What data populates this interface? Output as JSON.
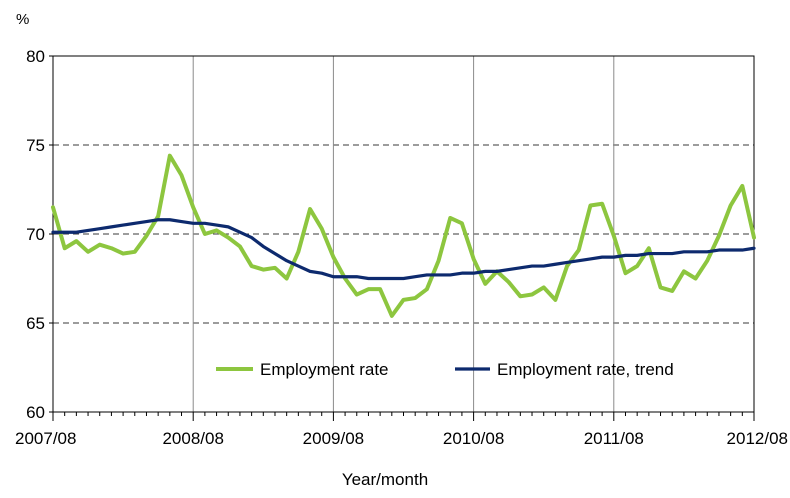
{
  "chart_data": {
    "type": "line",
    "unit_label": "%",
    "xlabel": "Year/month",
    "ylabel": "",
    "ylim": [
      60,
      80
    ],
    "yticks": [
      60,
      65,
      70,
      75,
      80
    ],
    "x_start_label": "2007/08",
    "x_tick_labels": [
      "2007/08",
      "2008/08",
      "2009/08",
      "2010/08",
      "2011/08",
      "2012/08"
    ],
    "grid": {
      "vertical_at_year_ticks": true,
      "horizontal_dashed": true
    },
    "legend_position": "bottom-center inside plot",
    "series": [
      {
        "name": "Employment rate",
        "color": "#8DC63F",
        "values": [
          71.5,
          69.2,
          69.6,
          69.0,
          69.4,
          69.2,
          68.9,
          69.0,
          69.9,
          71.0,
          74.4,
          73.3,
          71.5,
          70.0,
          70.2,
          69.8,
          69.3,
          68.2,
          68.0,
          68.1,
          67.5,
          69.0,
          71.4,
          70.3,
          68.7,
          67.5,
          66.6,
          66.9,
          66.9,
          65.4,
          66.3,
          66.4,
          66.9,
          68.5,
          70.9,
          70.6,
          68.6,
          67.2,
          67.9,
          67.3,
          66.5,
          66.6,
          67.0,
          66.3,
          68.2,
          69.1,
          71.6,
          71.7,
          69.9,
          67.8,
          68.2,
          69.2,
          67.0,
          66.8,
          67.9,
          67.5,
          68.5,
          69.9,
          71.6,
          72.7,
          69.8
        ]
      },
      {
        "name": "Employment rate, trend",
        "color": "#0D2A6E",
        "values": [
          70.1,
          70.1,
          70.1,
          70.2,
          70.3,
          70.4,
          70.5,
          70.6,
          70.7,
          70.8,
          70.8,
          70.7,
          70.6,
          70.6,
          70.5,
          70.4,
          70.1,
          69.8,
          69.3,
          68.9,
          68.5,
          68.2,
          67.9,
          67.8,
          67.6,
          67.6,
          67.6,
          67.5,
          67.5,
          67.5,
          67.5,
          67.6,
          67.7,
          67.7,
          67.7,
          67.8,
          67.8,
          67.9,
          67.9,
          68.0,
          68.1,
          68.2,
          68.2,
          68.3,
          68.4,
          68.5,
          68.6,
          68.7,
          68.7,
          68.8,
          68.8,
          68.9,
          68.9,
          68.9,
          69.0,
          69.0,
          69.0,
          69.1,
          69.1,
          69.1,
          69.2
        ]
      }
    ]
  }
}
